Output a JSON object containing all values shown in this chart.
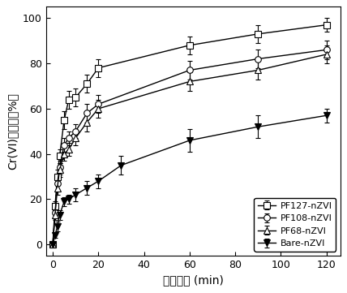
{
  "xlabel": "反应时间 (min)",
  "ylabel": "Cr(VI)去除率（%）",
  "xlim": [
    -3,
    126
  ],
  "ylim": [
    -5,
    105
  ],
  "xticks": [
    0,
    20,
    40,
    60,
    80,
    100,
    120
  ],
  "yticks": [
    0,
    20,
    40,
    60,
    80,
    100
  ],
  "series": [
    {
      "label": "PF127-nZVI",
      "x": [
        0,
        1,
        2,
        3,
        5,
        7,
        10,
        15,
        20,
        60,
        90,
        120
      ],
      "y": [
        0,
        17,
        30,
        39,
        55,
        64,
        65,
        71,
        78,
        88,
        93,
        97
      ],
      "yerr": [
        0,
        2,
        3,
        3,
        4,
        4,
        4,
        4,
        4,
        4,
        4,
        3
      ],
      "marker": "s",
      "filled": false,
      "markersize": 5.5
    },
    {
      "label": "PF108-nZVI",
      "x": [
        0,
        1,
        2,
        3,
        5,
        7,
        10,
        15,
        20,
        60,
        90,
        120
      ],
      "y": [
        0,
        14,
        27,
        34,
        44,
        47,
        50,
        58,
        62,
        77,
        82,
        86
      ],
      "yerr": [
        0,
        2,
        3,
        3,
        3,
        3,
        3,
        4,
        4,
        4,
        4,
        4
      ],
      "marker": "o",
      "filled": false,
      "markersize": 5.5
    },
    {
      "label": "PF68-nZVI",
      "x": [
        0,
        1,
        2,
        3,
        5,
        7,
        10,
        15,
        20,
        60,
        90,
        120
      ],
      "y": [
        0,
        13,
        25,
        33,
        40,
        42,
        47,
        54,
        60,
        72,
        77,
        84
      ],
      "yerr": [
        0,
        2,
        3,
        3,
        3,
        3,
        3,
        4,
        4,
        4,
        4,
        4
      ],
      "marker": "^",
      "filled": false,
      "markersize": 5.5
    },
    {
      "label": "Bare-nZVI",
      "x": [
        0,
        1,
        2,
        3,
        5,
        7,
        10,
        15,
        20,
        30,
        60,
        90,
        120
      ],
      "y": [
        0,
        4,
        8,
        13,
        19,
        20,
        22,
        25,
        28,
        35,
        46,
        52,
        57
      ],
      "yerr": [
        0,
        1,
        2,
        2,
        2,
        2,
        3,
        3,
        3,
        4,
        5,
        5,
        3
      ],
      "marker": "v",
      "filled": true,
      "markersize": 5.5
    }
  ],
  "legend_loc": "lower right",
  "background_color": "#ffffff",
  "font_size": 9,
  "label_font_size": 10
}
